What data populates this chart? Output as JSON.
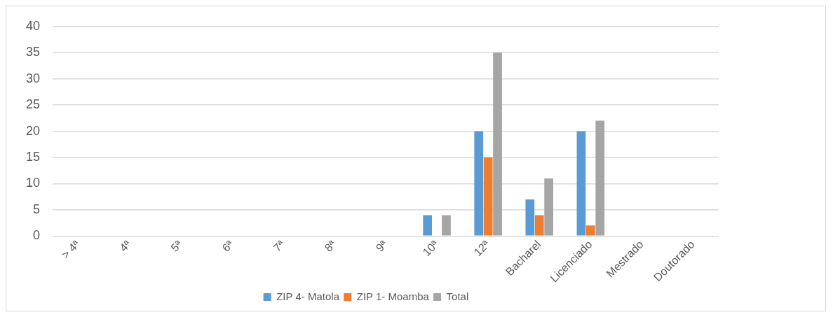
{
  "chart_data": {
    "type": "bar",
    "categories": [
      "> 4ª",
      "4ª",
      "5ª",
      "6ª",
      "7ª",
      "8ª",
      "9ª",
      "10ª",
      "12ª",
      "Bacharel",
      "Licenciado",
      "Mestrado",
      "Doutorado"
    ],
    "series": [
      {
        "name": "ZIP 4- Matola",
        "color": "#5b9bd5",
        "values": [
          0,
          0,
          0,
          0,
          0,
          0,
          0,
          4,
          20,
          7,
          20,
          0,
          0
        ]
      },
      {
        "name": "ZIP 1- Moamba",
        "color": "#ed7d31",
        "values": [
          0,
          0,
          0,
          0,
          0,
          0,
          0,
          0,
          15,
          4,
          2,
          0,
          0
        ]
      },
      {
        "name": "Total",
        "color": "#a5a5a5",
        "values": [
          0,
          0,
          0,
          0,
          0,
          0,
          0,
          4,
          35,
          11,
          22,
          0,
          0
        ]
      }
    ],
    "ylim": [
      0,
      40
    ],
    "yticks": [
      0,
      5,
      10,
      15,
      20,
      25,
      30,
      35,
      40
    ],
    "grid": "y",
    "legend": "bottom"
  }
}
